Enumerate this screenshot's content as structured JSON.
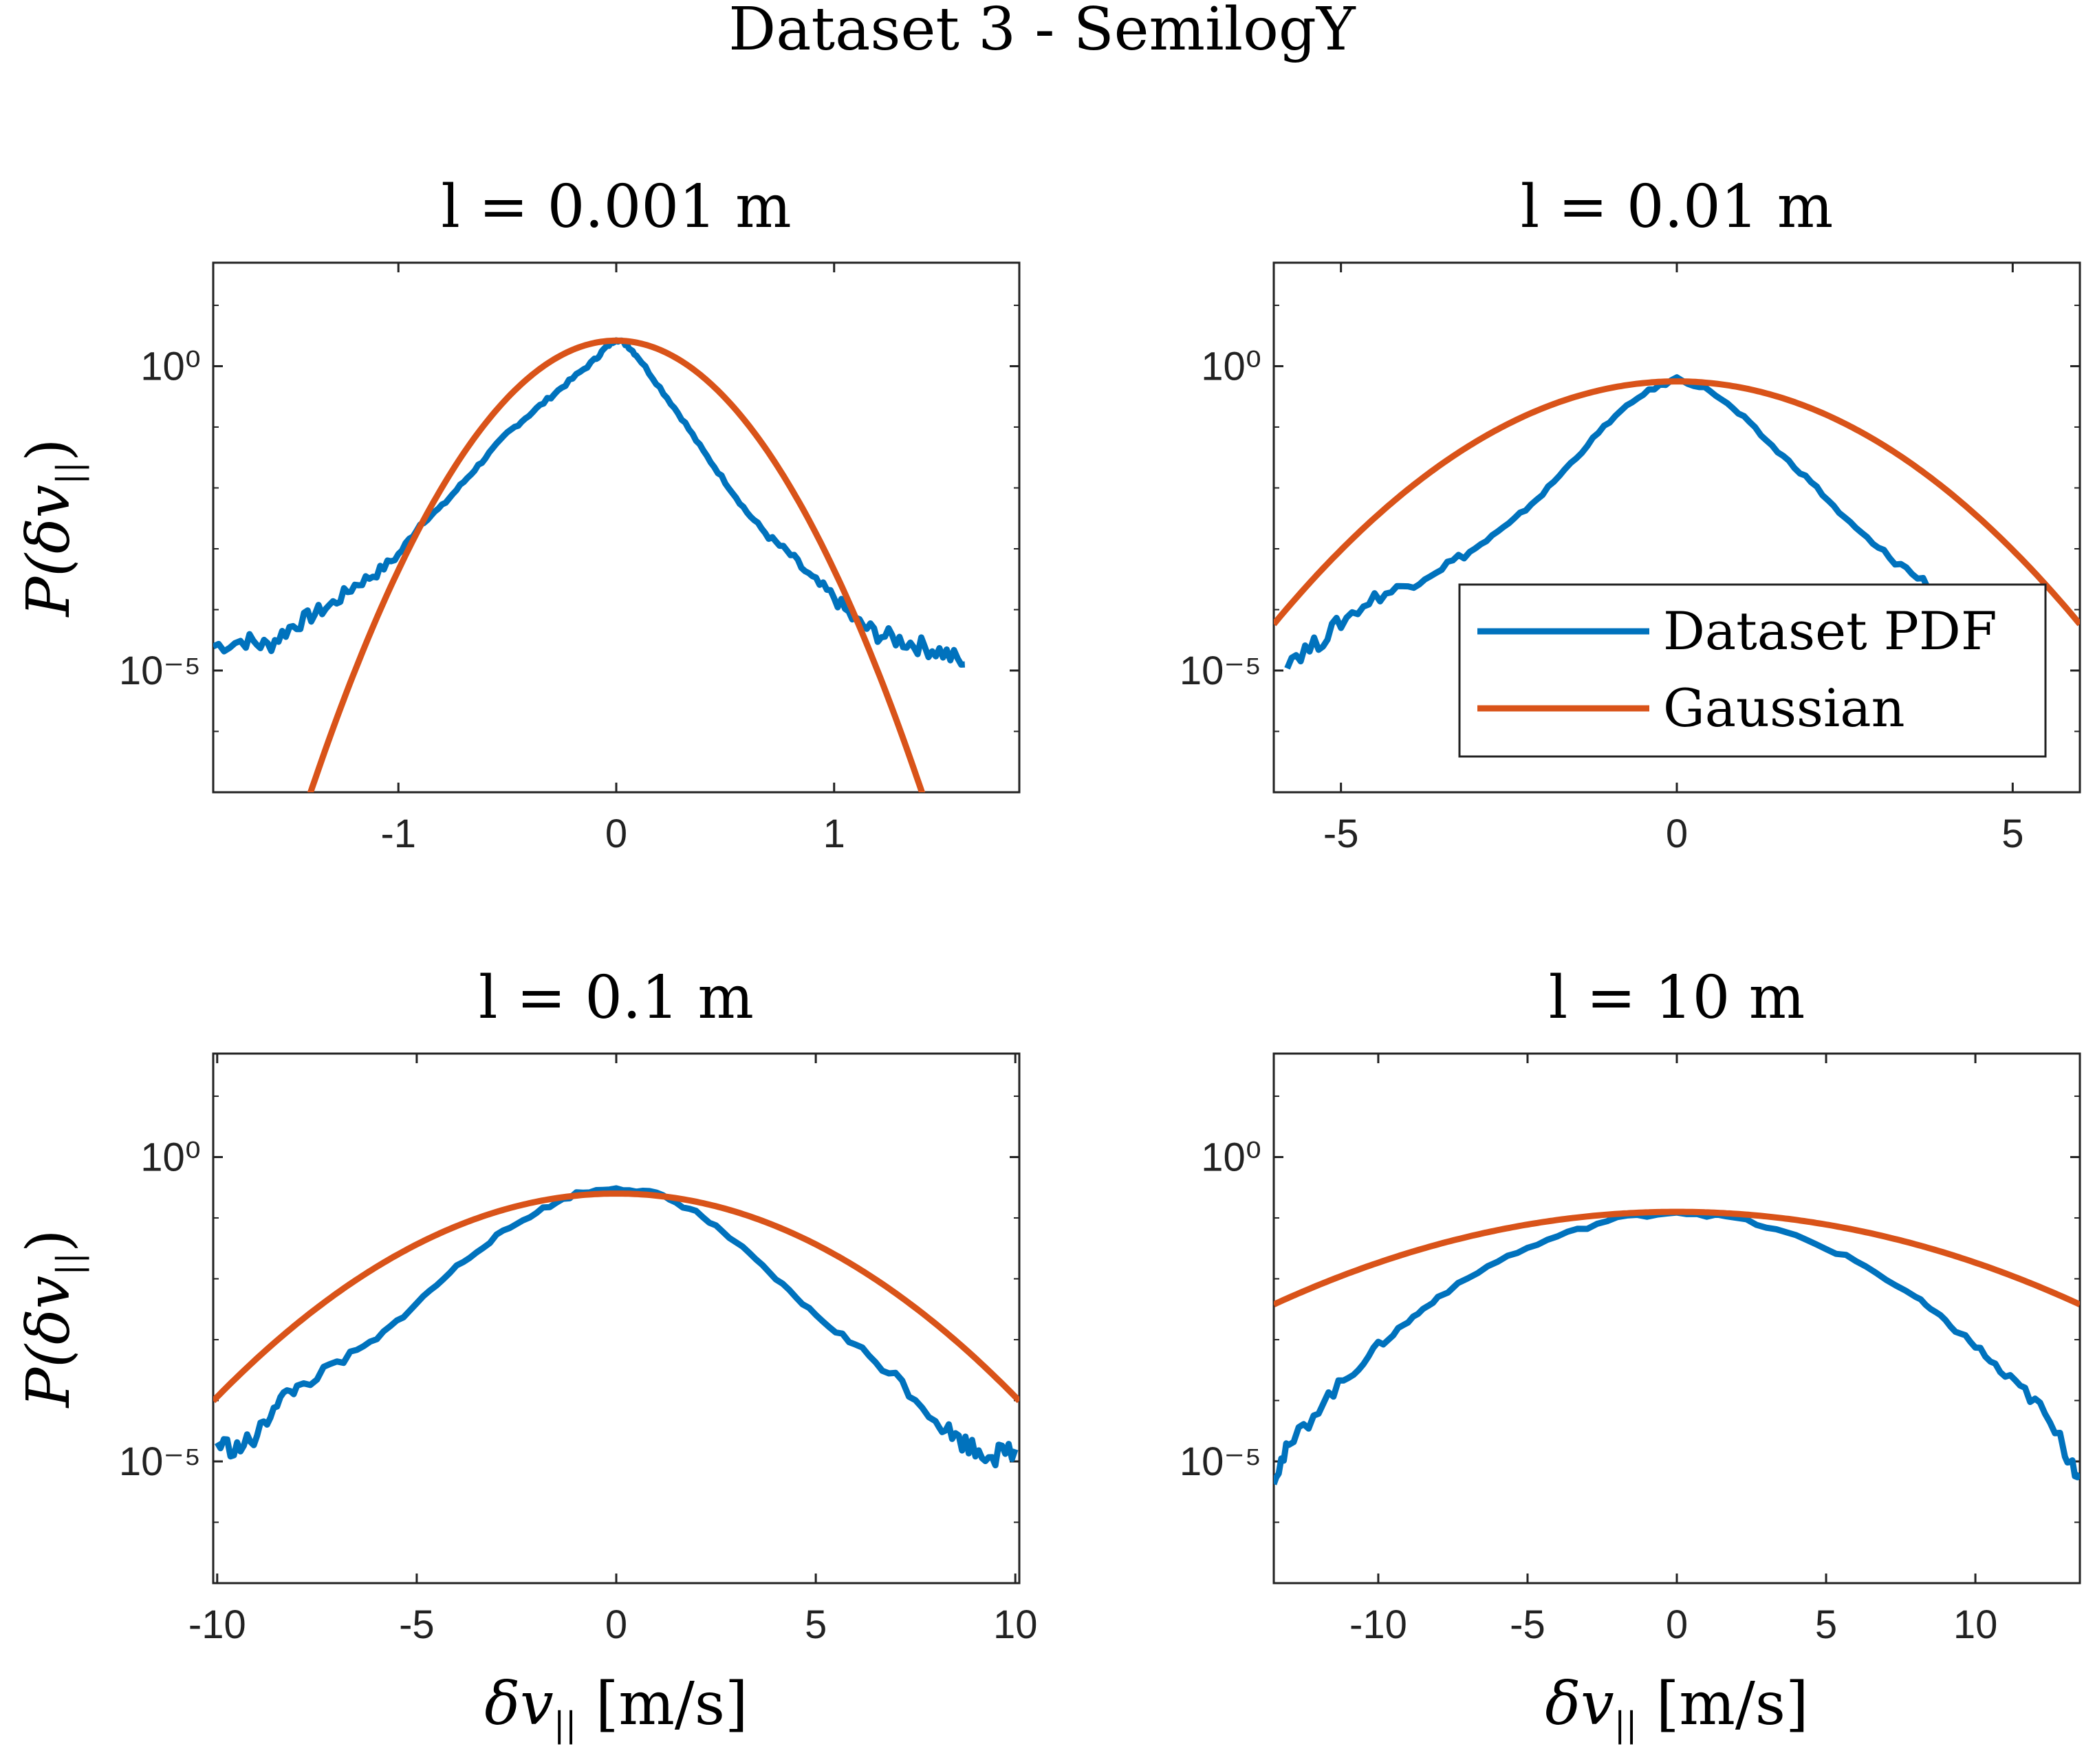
{
  "figure_title": "Dataset 3 - SemilogY",
  "ylabel_main": "P(δv",
  "ylabel_sub": "||",
  "ylabel_close": ")",
  "xlabel_main": "δv",
  "xlabel_sub": "||",
  "xlabel_unit": " [m/s]",
  "colors": {
    "dataset": "#0072BD",
    "gaussian": "#D95319"
  },
  "legend": {
    "placement": "lower-right of top-right panel",
    "entries": [
      "Dataset PDF",
      "Gaussian"
    ]
  },
  "chart_data": [
    {
      "type": "line",
      "scale_y": "log",
      "title": "l = 0.001 m",
      "xlim": [
        -1.85,
        1.85
      ],
      "ylim_exp": [
        -7,
        1.7
      ],
      "xticks": [
        -1,
        0,
        1
      ],
      "xtick_labels": [
        "-1",
        "0",
        "1"
      ],
      "yticks_exp": [
        0,
        -5
      ],
      "ytick_labels": [
        "10⁰",
        "10⁻⁵"
      ],
      "series": [
        {
          "name": "Dataset PDF",
          "x": [
            -1.85,
            -1.7,
            -1.6,
            -1.5,
            -1.4,
            -1.3,
            -1.2,
            -1.1,
            -1.0,
            -0.9,
            -0.8,
            -0.7,
            -0.6,
            -0.5,
            -0.4,
            -0.3,
            -0.2,
            -0.1,
            -0.05,
            0,
            0.05,
            0.1,
            0.2,
            0.3,
            0.4,
            0.5,
            0.6,
            0.7,
            0.8,
            0.9,
            1.0,
            1.1,
            1.2,
            1.3,
            1.4,
            1.5,
            1.6
          ],
          "y_exp": [
            -4.6,
            -4.5,
            -4.6,
            -4.3,
            -4.1,
            -3.9,
            -3.6,
            -3.4,
            -3.1,
            -2.6,
            -2.3,
            -1.9,
            -1.5,
            -1.1,
            -0.8,
            -0.5,
            -0.2,
            0.1,
            0.3,
            0.45,
            0.35,
            0.15,
            -0.35,
            -0.85,
            -1.4,
            -1.9,
            -2.4,
            -2.8,
            -3.1,
            -3.5,
            -3.8,
            -4.2,
            -4.4,
            -4.5,
            -4.6,
            -4.7,
            -4.9
          ]
        },
        {
          "name": "Gaussian",
          "mu": 0,
          "sigma": 0.24,
          "peak_exp": 0.42
        }
      ]
    },
    {
      "type": "line",
      "scale_y": "log",
      "title": "l = 0.01 m",
      "xlim": [
        -6,
        6
      ],
      "ylim_exp": [
        -7,
        1.7
      ],
      "xticks": [
        -5,
        0,
        5
      ],
      "xtick_labels": [
        "-5",
        "0",
        "5"
      ],
      "yticks_exp": [
        0,
        -5
      ],
      "ytick_labels": [
        "10⁰",
        "10⁻⁵"
      ],
      "series": [
        {
          "name": "Dataset PDF",
          "x": [
            -5.8,
            -5.4,
            -5.0,
            -4.5,
            -4.0,
            -3.5,
            -3.0,
            -2.5,
            -2.0,
            -1.5,
            -1.0,
            -0.5,
            0,
            0.5,
            1.0,
            1.5,
            2.0,
            2.5,
            3.0,
            3.5,
            4.0,
            4.5,
            5.0,
            5.2
          ],
          "y_exp": [
            -4.8,
            -4.6,
            -4.2,
            -3.8,
            -3.6,
            -3.3,
            -3.0,
            -2.6,
            -2.1,
            -1.5,
            -0.9,
            -0.45,
            -0.2,
            -0.4,
            -0.85,
            -1.4,
            -1.9,
            -2.5,
            -3.0,
            -3.4,
            -3.8,
            -4.1,
            -4.4,
            -4.6
          ]
        },
        {
          "name": "Gaussian",
          "mu": 0,
          "sigma": 1.4,
          "peak_exp": -0.25
        }
      ]
    },
    {
      "type": "line",
      "scale_y": "log",
      "title": "l = 0.1 m",
      "xlim": [
        -10.1,
        10.1
      ],
      "ylim_exp": [
        -7,
        1.7
      ],
      "xticks": [
        -10,
        -5,
        0,
        5,
        10
      ],
      "xtick_labels": [
        "-10",
        "-5",
        "0",
        "5",
        "10"
      ],
      "yticks_exp": [
        0,
        -5
      ],
      "ytick_labels": [
        "10⁰",
        "10⁻⁵"
      ],
      "series": [
        {
          "name": "Dataset PDF",
          "x": [
            -10,
            -9.5,
            -9,
            -8.5,
            -8,
            -7,
            -6,
            -5,
            -4,
            -3,
            -2,
            -1,
            0,
            1,
            2,
            3,
            4,
            5,
            6,
            7,
            8,
            8.5,
            9,
            9.5,
            10
          ],
          "y_exp": [
            -4.7,
            -4.8,
            -4.6,
            -4.0,
            -3.8,
            -3.4,
            -3.0,
            -2.4,
            -1.8,
            -1.3,
            -0.9,
            -0.6,
            -0.5,
            -0.6,
            -0.9,
            -1.4,
            -2.0,
            -2.6,
            -3.1,
            -3.6,
            -4.3,
            -4.6,
            -4.8,
            -4.9,
            -4.8
          ]
        },
        {
          "name": "Gaussian",
          "mu": 0,
          "sigma": 2.55,
          "peak_exp": -0.6
        }
      ]
    },
    {
      "type": "line",
      "scale_y": "log",
      "title": "l = 10 m",
      "xlim": [
        -13.5,
        13.5
      ],
      "ylim_exp": [
        -7,
        1.7
      ],
      "xticks": [
        -10,
        -5,
        0,
        5,
        10
      ],
      "xtick_labels": [
        "-10",
        "-5",
        "0",
        "5",
        "10"
      ],
      "yticks_exp": [
        0,
        -5
      ],
      "ytick_labels": [
        "10⁰",
        "10⁻⁵"
      ],
      "series": [
        {
          "name": "Dataset PDF",
          "x": [
            -13.5,
            -13,
            -12,
            -11,
            -10,
            -9,
            -8,
            -6,
            -4,
            -2,
            0,
            2,
            4,
            6,
            8,
            9,
            10,
            11,
            12,
            13,
            13.5
          ],
          "y_exp": [
            -5.2,
            -4.8,
            -4.1,
            -3.6,
            -3.1,
            -2.7,
            -2.3,
            -1.7,
            -1.3,
            -1.0,
            -0.9,
            -1.0,
            -1.3,
            -1.7,
            -2.3,
            -2.7,
            -3.1,
            -3.6,
            -4.0,
            -4.8,
            -5.2
          ]
        },
        {
          "name": "Gaussian",
          "mu": 0,
          "sigma": 5.1,
          "peak_exp": -0.9
        }
      ]
    }
  ]
}
